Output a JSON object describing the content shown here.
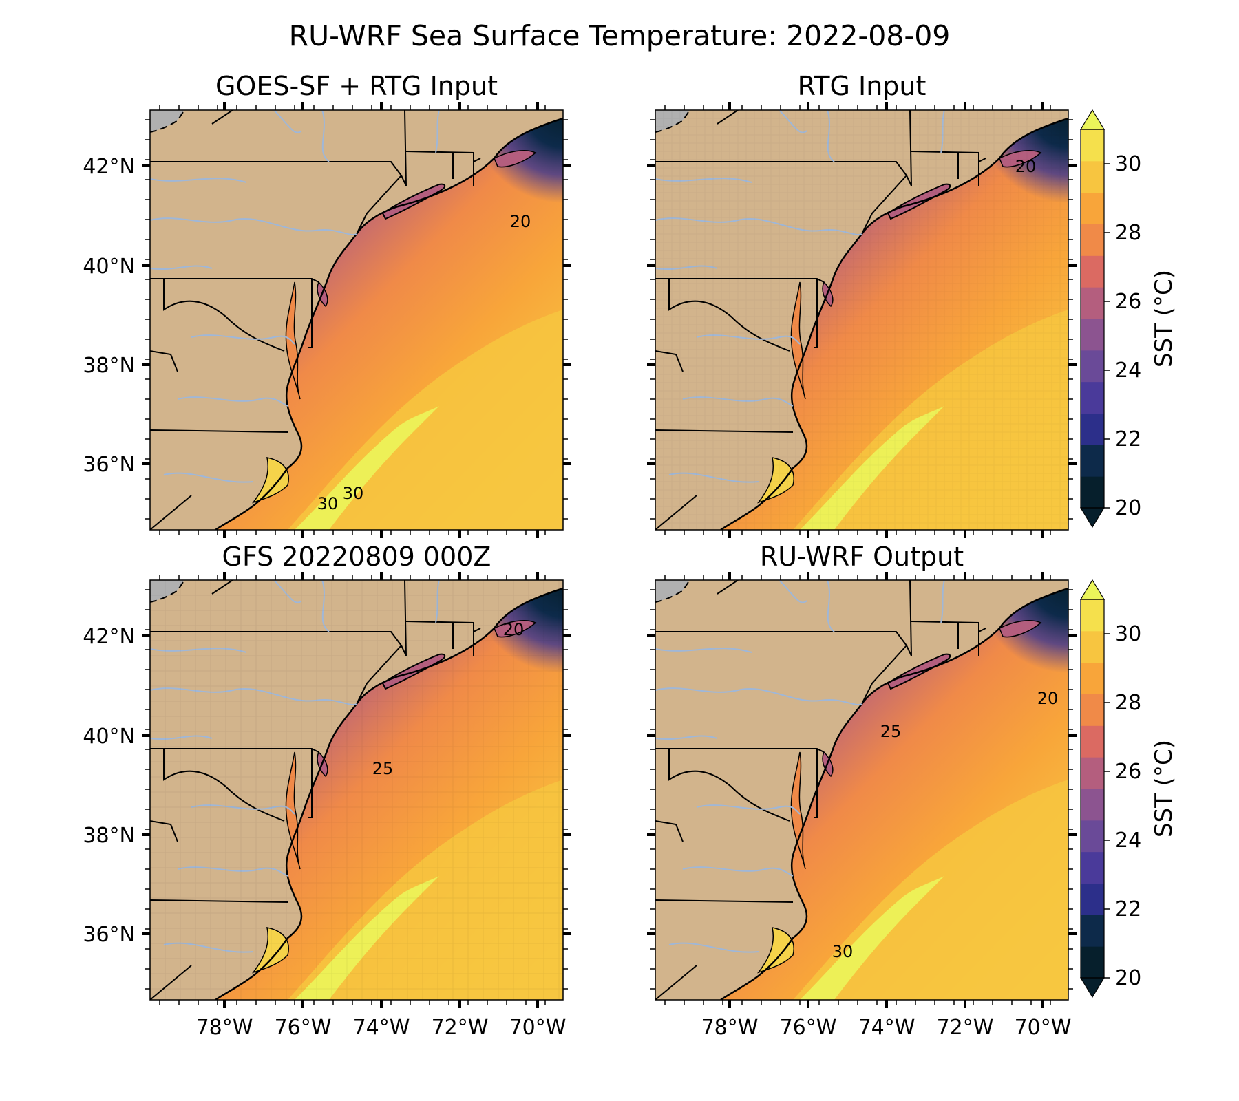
{
  "figure": {
    "title": "RU-WRF Sea Surface Temperature: 2022-08-09"
  },
  "panels": [
    {
      "title": "GOES-SF + RTG Input",
      "resolution": "fine",
      "contour_labels": [
        "20",
        "30",
        "30"
      ]
    },
    {
      "title": "RTG Input",
      "resolution": "coarse",
      "contour_labels": [
        "20"
      ]
    },
    {
      "title": "GFS 20220809 000Z",
      "resolution": "blocky",
      "contour_labels": [
        "20",
        "25"
      ]
    },
    {
      "title": "RU-WRF Output",
      "resolution": "fine",
      "contour_labels": [
        "20",
        "25",
        "30"
      ]
    }
  ],
  "axes": {
    "lat_ticks": [
      "42°N",
      "40°N",
      "38°N",
      "36°N"
    ],
    "lon_ticks": [
      "78°W",
      "76°W",
      "74°W",
      "72°W",
      "70°W"
    ]
  },
  "colorbar": {
    "label": "SST (°C)",
    "ticks": [
      "20",
      "22",
      "24",
      "26",
      "28",
      "30"
    ],
    "levels": [
      "#061f2c",
      "#0d2a4a",
      "#2c2f8a",
      "#4a3a9a",
      "#6a4a98",
      "#8c5490",
      "#b45e7e",
      "#db6a62",
      "#f08a48",
      "#f8a53a",
      "#f7c540",
      "#f5e04c",
      "#ebf55a"
    ]
  },
  "colors": {
    "land": "#d2b48c",
    "ocean_cold": "#061f2c",
    "ocean_warm": "#f7c540",
    "rivers": "#9fb7d8",
    "borders": "#000000",
    "canada": "#b0b0b0"
  }
}
